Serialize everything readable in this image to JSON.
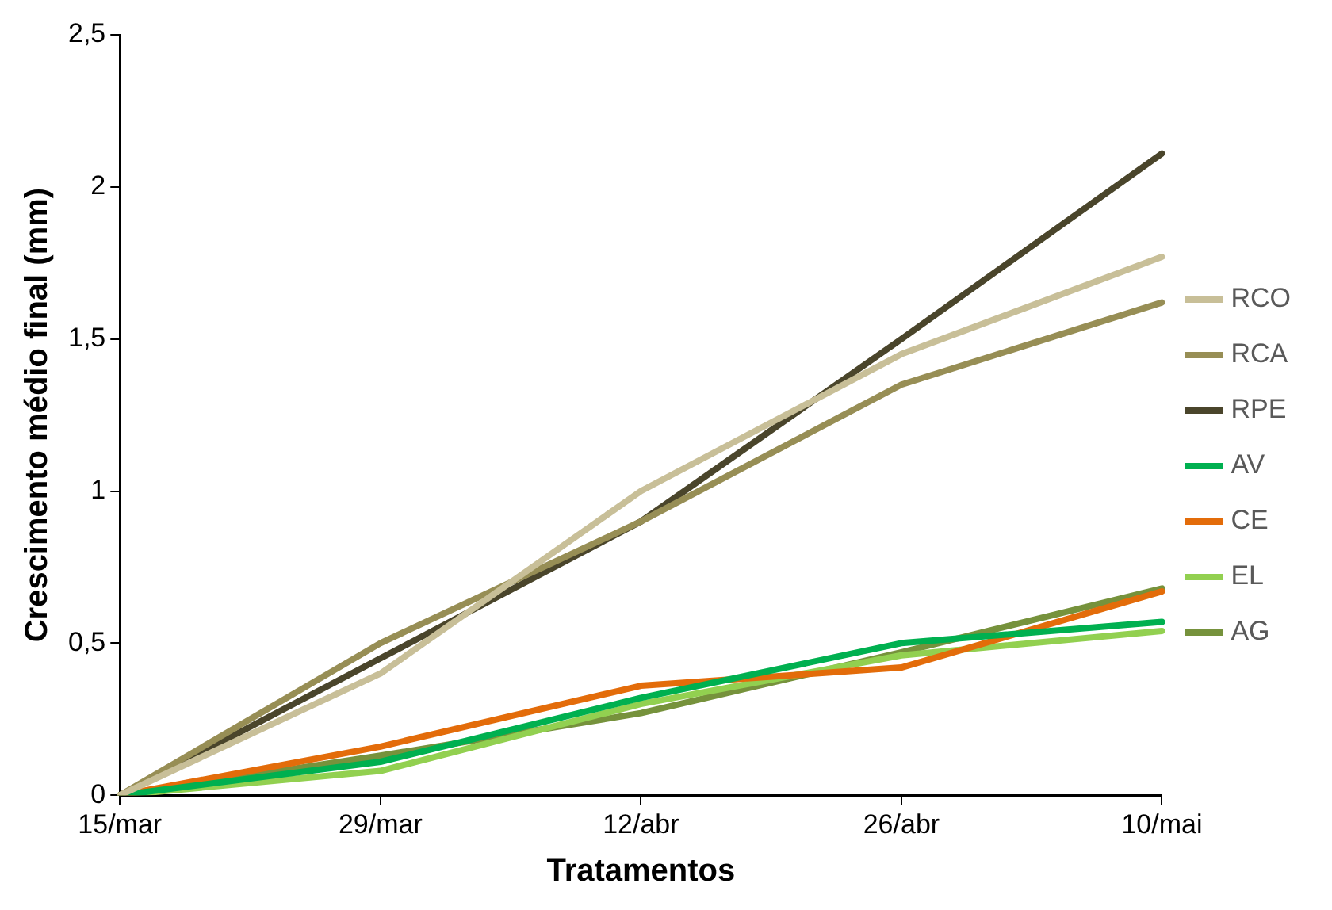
{
  "chart_data": {
    "type": "line",
    "xlabel": "Tratamentos",
    "ylabel": "Crescimento médio final (mm)",
    "categories": [
      "15/mar",
      "29/mar",
      "12/abr",
      "26/abr",
      "10/mai"
    ],
    "series": [
      {
        "name": "RCO",
        "color": "#c8bf98",
        "values": [
          0,
          0.4,
          1.0,
          1.45,
          1.77
        ]
      },
      {
        "name": "RCA",
        "color": "#978e55",
        "values": [
          0,
          0.5,
          0.9,
          1.35,
          1.62
        ]
      },
      {
        "name": "RPE",
        "color": "#4a452b",
        "values": [
          0,
          0.45,
          0.9,
          1.5,
          2.11
        ]
      },
      {
        "name": "AV",
        "color": "#00b050",
        "values": [
          0,
          0.11,
          0.32,
          0.5,
          0.57
        ]
      },
      {
        "name": "CE",
        "color": "#e36c0a",
        "values": [
          0,
          0.16,
          0.36,
          0.42,
          0.67
        ]
      },
      {
        "name": "EL",
        "color": "#92d050",
        "values": [
          0,
          0.08,
          0.3,
          0.46,
          0.54
        ]
      },
      {
        "name": "AG",
        "color": "#76923c",
        "values": [
          0,
          0.13,
          0.27,
          0.47,
          0.68
        ]
      }
    ],
    "ylim": [
      0,
      2.5
    ],
    "yticks": [
      0,
      {
        "value": 0.5,
        "label": "0,5"
      },
      1,
      {
        "value": 1.5,
        "label": "1,5"
      },
      2,
      {
        "value": 2.5,
        "label": "2,5"
      }
    ],
    "grid": false,
    "legend": "right",
    "marker": "none",
    "line_style": "solid"
  }
}
